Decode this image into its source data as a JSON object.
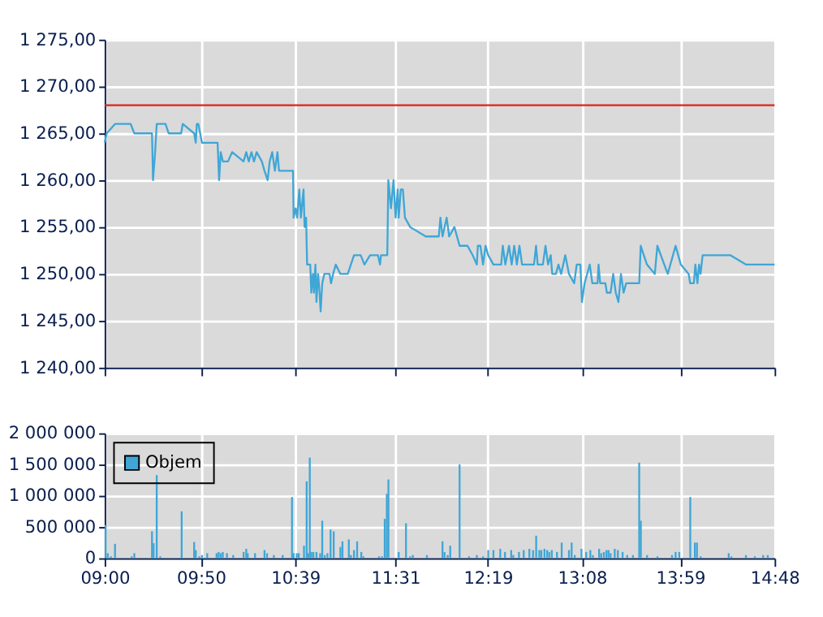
{
  "chart_data": [
    {
      "type": "line",
      "xlim": [
        9,
        14.8
      ],
      "xticks": [
        {
          "value": 9,
          "label": null
        },
        {
          "value": 9.8333,
          "label": null
        },
        {
          "value": 10.65,
          "label": null
        },
        {
          "value": 11.5167,
          "label": null
        },
        {
          "value": 12.3167,
          "label": null
        },
        {
          "value": 13.1333,
          "label": null
        },
        {
          "value": 13.9833,
          "label": null
        },
        {
          "value": 14.8,
          "label": null
        }
      ],
      "ylim": [
        1240,
        1275
      ],
      "yticks": [
        {
          "value": 1240,
          "label": "1 240,00"
        },
        {
          "value": 1245,
          "label": "1 245,00"
        },
        {
          "value": 1250,
          "label": "1 250,00"
        },
        {
          "value": 1255,
          "label": "1 255,00"
        },
        {
          "value": 1260,
          "label": "1 260,00"
        },
        {
          "value": 1265,
          "label": "1 265,00"
        },
        {
          "value": 1270,
          "label": "1 270,00"
        },
        {
          "value": 1275,
          "label": "1 275,00"
        }
      ],
      "grid": true,
      "tick_labels": "y",
      "line_style": "solid",
      "marker": "none",
      "ref_lines": [
        {
          "axis": "y",
          "value": 1268,
          "label": null,
          "color": "#e02020"
        }
      ],
      "series": [
        {
          "color": "#3fa6d6",
          "x": [
            9.0,
            9.018,
            9.09,
            9.225,
            9.257,
            9.41,
            9.419,
            9.437,
            9.451,
            9.527,
            9.554,
            9.662,
            9.676,
            9.775,
            9.789,
            9.798,
            9.811,
            9.843,
            9.978,
            9.991,
            10.005,
            10.023,
            10.068,
            10.104,
            10.203,
            10.226,
            10.248,
            10.271,
            10.293,
            10.316,
            10.361,
            10.384,
            10.411,
            10.429,
            10.451,
            10.474,
            10.496,
            10.51,
            10.631,
            10.636,
            10.654,
            10.667,
            10.685,
            10.699,
            10.722,
            10.731,
            10.744,
            10.753,
            10.78,
            10.789,
            10.803,
            10.812,
            10.825,
            10.834,
            10.848,
            10.861,
            10.87,
            10.884,
            10.902,
            10.947,
            10.96,
            10.978,
            11.001,
            11.041,
            11.105,
            11.132,
            11.159,
            11.217,
            11.249,
            11.298,
            11.366,
            11.384,
            11.393,
            11.447,
            11.456,
            11.479,
            11.501,
            11.519,
            11.537,
            11.546,
            11.564,
            11.582,
            11.6,
            11.645,
            11.78,
            11.893,
            11.907,
            11.925,
            11.961,
            11.983,
            12.028,
            12.073,
            12.141,
            12.186,
            12.222,
            12.231,
            12.253,
            12.276,
            12.298,
            12.321,
            12.366,
            12.433,
            12.447,
            12.469,
            12.501,
            12.524,
            12.546,
            12.569,
            12.591,
            12.614,
            12.717,
            12.735,
            12.749,
            12.794,
            12.817,
            12.839,
            12.862,
            12.875,
            12.907,
            12.929,
            12.952,
            12.988,
            13.02,
            13.065,
            13.087,
            13.119,
            13.132,
            13.155,
            13.2,
            13.222,
            13.267,
            13.276,
            13.29,
            13.335,
            13.348,
            13.38,
            13.403,
            13.425,
            13.448,
            13.47,
            13.493,
            13.515,
            13.628,
            13.641,
            13.695,
            13.763,
            13.785,
            13.875,
            13.943,
            13.988,
            14.056,
            14.069,
            14.101,
            14.114,
            14.132,
            14.146,
            14.159,
            14.177,
            14.416,
            14.551,
            14.8
          ],
          "values": [
            1264,
            1265,
            1266,
            1266,
            1265,
            1265,
            1260,
            1263,
            1266,
            1266,
            1265,
            1265,
            1266,
            1265,
            1264,
            1266,
            1266,
            1264,
            1264,
            1260,
            1263,
            1262,
            1262,
            1263,
            1262,
            1263,
            1262,
            1263,
            1262,
            1263,
            1262,
            1261,
            1260,
            1262,
            1263,
            1261,
            1263,
            1261,
            1261,
            1256,
            1257,
            1256,
            1259,
            1256,
            1259,
            1255,
            1256,
            1251,
            1251,
            1248,
            1250,
            1248,
            1251,
            1247,
            1250,
            1248,
            1246,
            1249,
            1250,
            1250,
            1249,
            1250,
            1251,
            1250,
            1250,
            1251,
            1252,
            1252,
            1251,
            1252,
            1252,
            1251,
            1252,
            1252,
            1260,
            1257,
            1260,
            1256,
            1259,
            1256,
            1259,
            1259,
            1256,
            1255,
            1254,
            1254,
            1256,
            1254,
            1256,
            1254,
            1255,
            1253,
            1253,
            1252,
            1251,
            1253,
            1253,
            1251,
            1253,
            1252,
            1251,
            1251,
            1253,
            1251,
            1253,
            1251,
            1253,
            1251,
            1253,
            1251,
            1251,
            1253,
            1251,
            1251,
            1253,
            1251,
            1252,
            1250,
            1250,
            1251,
            1250,
            1252,
            1250,
            1249,
            1251,
            1251,
            1247,
            1249,
            1251,
            1249,
            1249,
            1251,
            1249,
            1249,
            1248,
            1248,
            1250,
            1248,
            1247,
            1250,
            1248,
            1249,
            1249,
            1253,
            1251,
            1250,
            1253,
            1250,
            1253,
            1251,
            1250,
            1249,
            1249,
            1251,
            1249,
            1251,
            1250,
            1252,
            1252,
            1251,
            1251
          ]
        }
      ]
    },
    {
      "type": "bar",
      "xlim": [
        9,
        14.8
      ],
      "xticks": [
        {
          "value": 9,
          "label": "09:00"
        },
        {
          "value": 9.8333,
          "label": "09:50"
        },
        {
          "value": 10.65,
          "label": "10:39"
        },
        {
          "value": 11.5167,
          "label": "11:31"
        },
        {
          "value": 12.3167,
          "label": "12:19"
        },
        {
          "value": 13.1333,
          "label": "13:08"
        },
        {
          "value": 13.9833,
          "label": "13:59"
        },
        {
          "value": 14.8,
          "label": "14:48"
        }
      ],
      "ylim": [
        0,
        2000000
      ],
      "yticks": [
        {
          "value": 0,
          "label": "0"
        },
        {
          "value": 500000,
          "label": "500 000"
        },
        {
          "value": 1000000,
          "label": "1 000 000"
        },
        {
          "value": 1500000,
          "label": "1 500 000"
        },
        {
          "value": 2000000,
          "label": "2 000 000"
        }
      ],
      "grid": true,
      "legend": "top left",
      "series": [
        {
          "name": "Objem",
          "color": "#3fa6d6",
          "x": [
            9.009,
            9.027,
            9.054,
            9.09,
            9.234,
            9.257,
            9.41,
            9.424,
            9.451,
            9.482,
            9.667,
            9.775,
            9.789,
            9.82,
            9.843,
            9.888,
            9.969,
            9.987,
            10.005,
            10.023,
            10.059,
            10.113,
            10.203,
            10.226,
            10.239,
            10.302,
            10.384,
            10.406,
            10.465,
            10.541,
            10.622,
            10.636,
            10.663,
            10.681,
            10.726,
            10.74,
            10.749,
            10.762,
            10.776,
            10.789,
            10.807,
            10.834,
            10.866,
            10.884,
            10.906,
            10.929,
            10.956,
            10.983,
            11.028,
            11.041,
            11.059,
            11.114,
            11.132,
            11.159,
            11.186,
            11.222,
            11.24,
            11.375,
            11.402,
            11.425,
            11.443,
            11.457,
            11.546,
            11.609,
            11.645,
            11.668,
            11.79,
            11.925,
            11.943,
            11.97,
            11.992,
            12.073,
            12.155,
            12.222,
            12.276,
            12.321,
            12.366,
            12.425,
            12.466,
            12.52,
            12.538,
            12.587,
            12.628,
            12.677,
            12.709,
            12.736,
            12.763,
            12.781,
            12.808,
            12.831,
            12.849,
            12.871,
            12.916,
            12.957,
            13.02,
            13.043,
            13.07,
            13.128,
            13.169,
            13.205,
            13.227,
            13.281,
            13.299,
            13.322,
            13.344,
            13.362,
            13.38,
            13.416,
            13.443,
            13.484,
            13.524,
            13.574,
            13.619,
            13.628,
            13.642,
            13.696,
            13.786,
            13.912,
            13.943,
            13.975,
            14.07,
            14.11,
            14.128,
            14.16,
            14.403,
            14.426,
            14.552,
            14.629,
            14.701,
            14.741
          ],
          "values": [
            530000,
            80000,
            30000,
            230000,
            30000,
            80000,
            430000,
            240000,
            1330000,
            30000,
            750000,
            260000,
            130000,
            30000,
            50000,
            80000,
            80000,
            100000,
            80000,
            100000,
            80000,
            50000,
            100000,
            150000,
            80000,
            80000,
            130000,
            80000,
            50000,
            50000,
            980000,
            80000,
            80000,
            80000,
            200000,
            null,
            1230000,
            80000,
            1610000,
            100000,
            100000,
            100000,
            80000,
            600000,
            50000,
            80000,
            460000,
            430000,
            null,
            180000,
            270000,
            300000,
            50000,
            130000,
            270000,
            100000,
            30000,
            30000,
            30000,
            630000,
            1030000,
            1260000,
            100000,
            560000,
            30000,
            50000,
            50000,
            270000,
            100000,
            50000,
            200000,
            1500000,
            30000,
            50000,
            30000,
            130000,
            130000,
            150000,
            100000,
            130000,
            50000,
            100000,
            130000,
            150000,
            130000,
            360000,
            130000,
            130000,
            150000,
            130000,
            100000,
            130000,
            100000,
            250000,
            130000,
            250000,
            50000,
            150000,
            100000,
            130000,
            50000,
            150000,
            80000,
            100000,
            130000,
            130000,
            80000,
            150000,
            130000,
            100000,
            50000,
            50000,
            null,
            1530000,
            600000,
            50000,
            30000,
            50000,
            100000,
            100000,
            980000,
            250000,
            250000,
            30000,
            80000,
            30000,
            50000,
            30000,
            50000,
            50000
          ]
        }
      ]
    }
  ]
}
